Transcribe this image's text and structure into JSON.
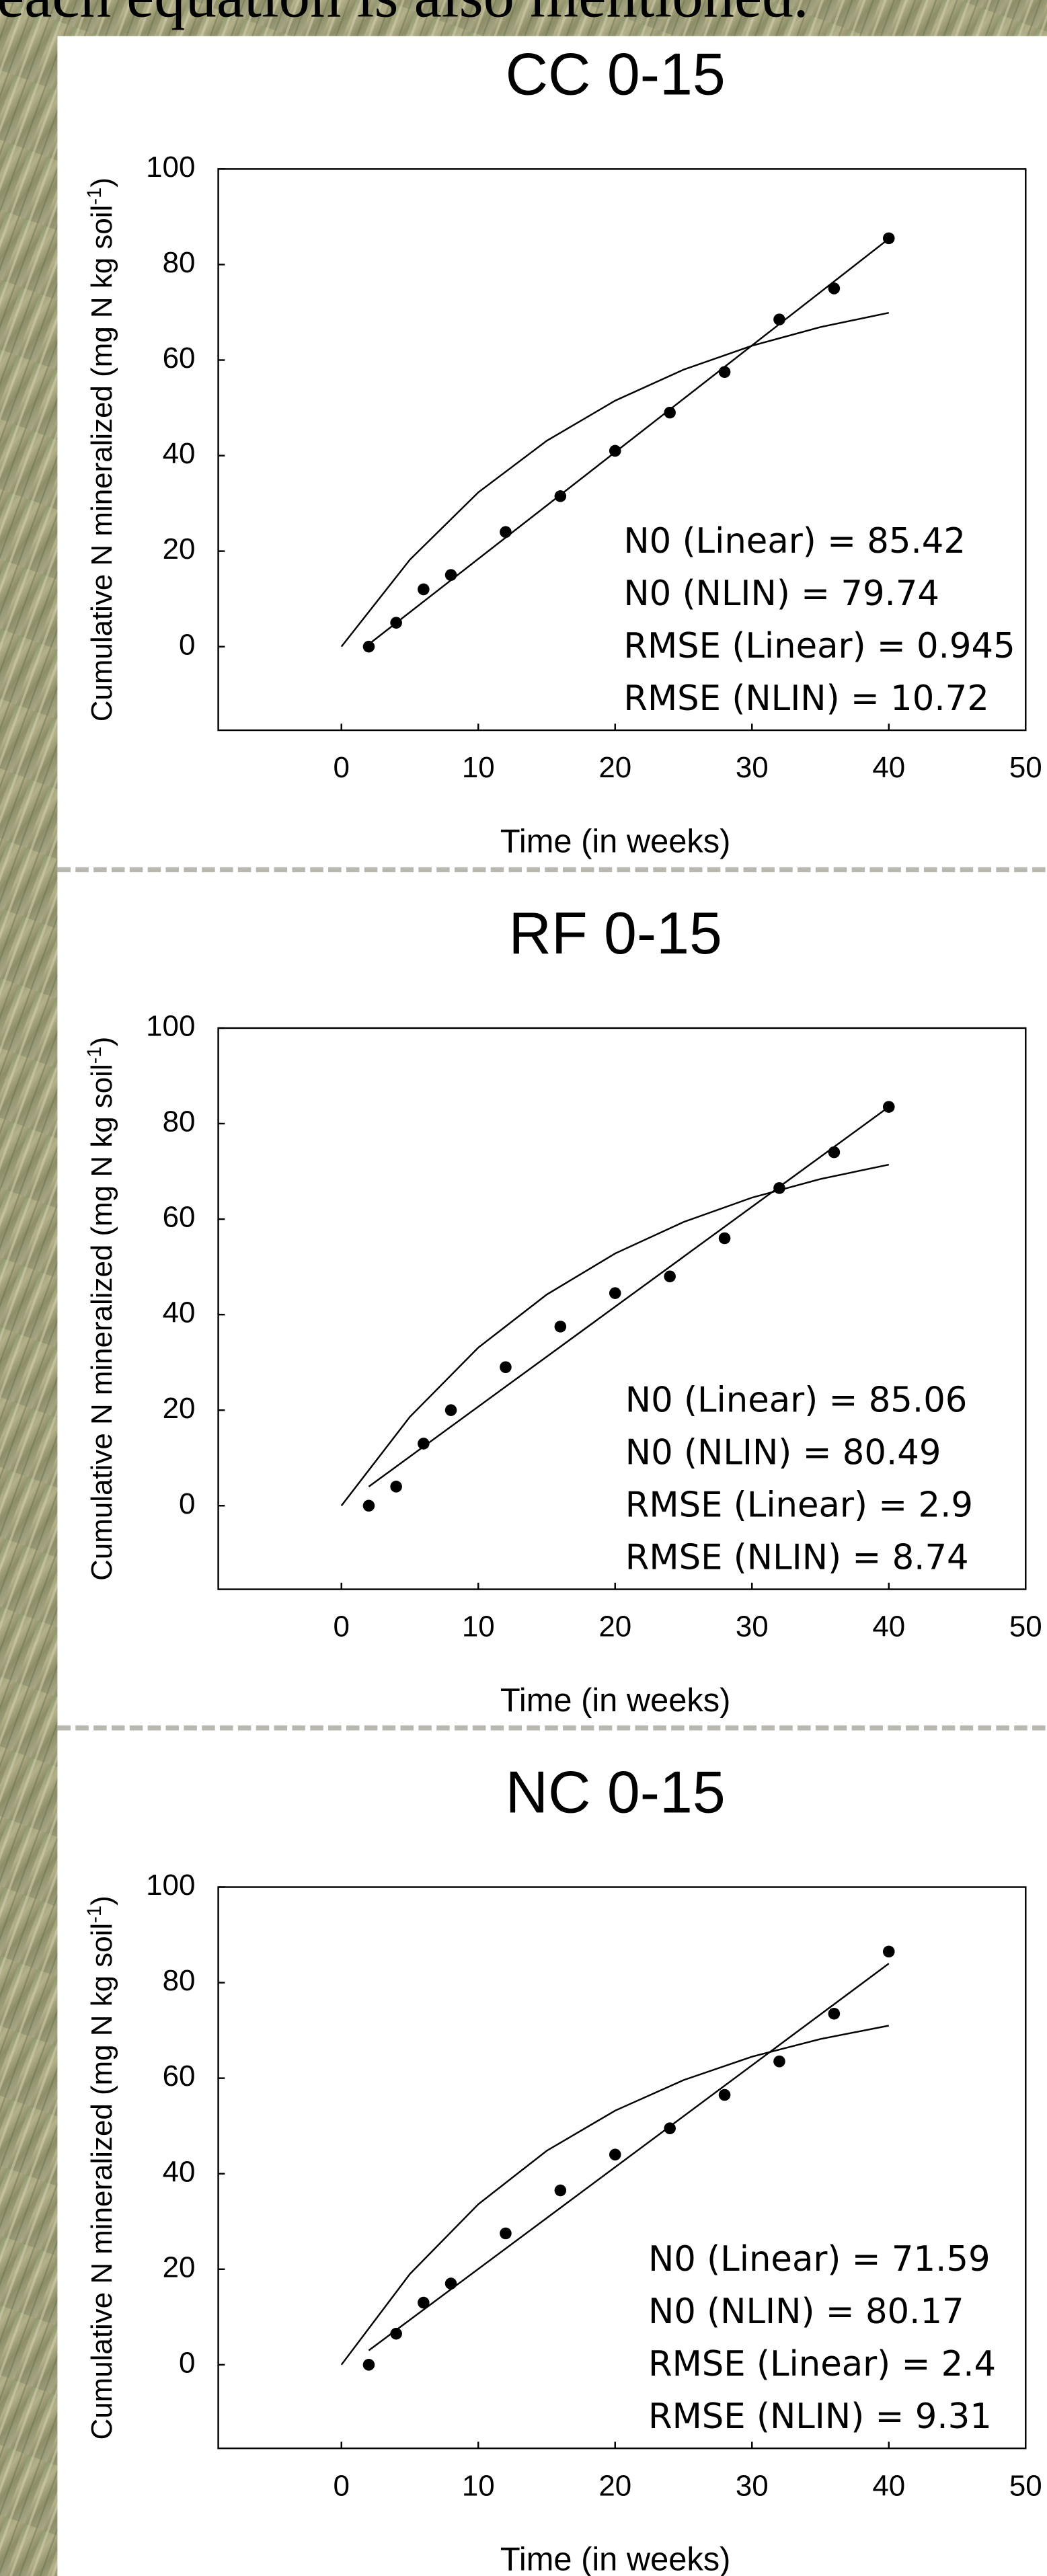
{
  "header_text": "each equation is also mentioned.",
  "chart_data": [
    {
      "type": "scatter",
      "title": "CC 0-15",
      "xlabel": "Time (in weeks)",
      "ylabel_parts": [
        "Cumulative N mineralized (mg N kg soil",
        "-1",
        ")"
      ],
      "xlim": [
        -9,
        50
      ],
      "ylim": [
        -17.5,
        100
      ],
      "xticks": [
        0,
        10,
        20,
        30,
        40,
        50
      ],
      "yticks": [
        0,
        20,
        40,
        60,
        80,
        100
      ],
      "grid": false,
      "series": [
        {
          "mode": "markers",
          "color": "#000000",
          "x": [
            2,
            4,
            6,
            8,
            12,
            16,
            20,
            24,
            28,
            32,
            36,
            40
          ],
          "values": [
            0,
            5,
            12,
            15,
            24,
            31.5,
            41,
            49,
            57.5,
            68.5,
            75,
            85.5
          ]
        },
        {
          "mode": "line",
          "color": "#000000",
          "x": [
            2,
            40
          ],
          "values": [
            0.5,
            85.4
          ]
        },
        {
          "mode": "line",
          "color": "#000000",
          "x": [
            0,
            5,
            10,
            15,
            20,
            25,
            30,
            35,
            40
          ],
          "values": [
            0,
            18.2,
            32.3,
            43.1,
            51.5,
            58,
            63,
            66.9,
            69.9
          ]
        }
      ],
      "annotations": [
        "N0 (Linear) = 85.42",
        "N0 (NLIN) = 79.74",
        "RMSE (Linear) = 0.945",
        "RMSE (NLIN) = 10.72"
      ]
    },
    {
      "type": "scatter",
      "title": "RF 0-15",
      "xlabel": "Time (in weeks)",
      "ylabel_parts": [
        "Cumulative N mineralized (mg N kg soil",
        "-1",
        ")"
      ],
      "xlim": [
        -9,
        50
      ],
      "ylim": [
        -17.5,
        100
      ],
      "xticks": [
        0,
        10,
        20,
        30,
        40,
        50
      ],
      "yticks": [
        0,
        20,
        40,
        60,
        80,
        100
      ],
      "grid": false,
      "series": [
        {
          "mode": "markers",
          "color": "#000000",
          "x": [
            2,
            4,
            6,
            8,
            12,
            16,
            20,
            24,
            28,
            32,
            36,
            40
          ],
          "values": [
            0,
            4,
            13,
            20,
            29,
            37.5,
            44.5,
            48,
            56,
            66.5,
            74,
            83.5
          ]
        },
        {
          "mode": "line",
          "color": "#000000",
          "x": [
            2,
            40
          ],
          "values": [
            4,
            83.5
          ]
        },
        {
          "mode": "line",
          "color": "#000000",
          "x": [
            0,
            5,
            10,
            15,
            20,
            25,
            30,
            35,
            40
          ],
          "values": [
            0,
            18.6,
            33.1,
            44.2,
            52.8,
            59.4,
            64.5,
            68.4,
            71.4
          ]
        }
      ],
      "annotations": [
        "N0 (Linear) = 85.06",
        "N0 (NLIN) = 80.49",
        "RMSE (Linear) = 2.9",
        "RMSE (NLIN) = 8.74"
      ]
    },
    {
      "type": "scatter",
      "title": "NC 0-15",
      "xlabel": "Time (in weeks)",
      "ylabel_parts": [
        "Cumulative N mineralized (mg N kg soil",
        "-1",
        ")"
      ],
      "xlim": [
        -9,
        50
      ],
      "ylim": [
        -17.5,
        100
      ],
      "xticks": [
        0,
        10,
        20,
        30,
        40,
        50
      ],
      "yticks": [
        0,
        20,
        40,
        60,
        80,
        100
      ],
      "grid": false,
      "series": [
        {
          "mode": "markers",
          "color": "#000000",
          "x": [
            2,
            4,
            6,
            8,
            12,
            16,
            20,
            24,
            28,
            32,
            36,
            40
          ],
          "values": [
            0,
            6.5,
            13,
            17,
            27.5,
            36.5,
            44,
            49.5,
            56.5,
            63.5,
            73.5,
            86.5
          ]
        },
        {
          "mode": "line",
          "color": "#000000",
          "x": [
            2,
            40
          ],
          "values": [
            3,
            84
          ]
        },
        {
          "mode": "line",
          "color": "#000000",
          "x": [
            0,
            5,
            10,
            15,
            20,
            25,
            30,
            35,
            40
          ],
          "values": [
            0,
            19,
            33.6,
            44.8,
            53.2,
            59.6,
            64.5,
            68.2,
            71
          ]
        }
      ],
      "annotations": [
        "N0 (Linear) = 71.59",
        "N0 (NLIN) = 80.17",
        "RMSE (Linear) = 2.4",
        "RMSE (NLIN) = 9.31"
      ]
    }
  ]
}
